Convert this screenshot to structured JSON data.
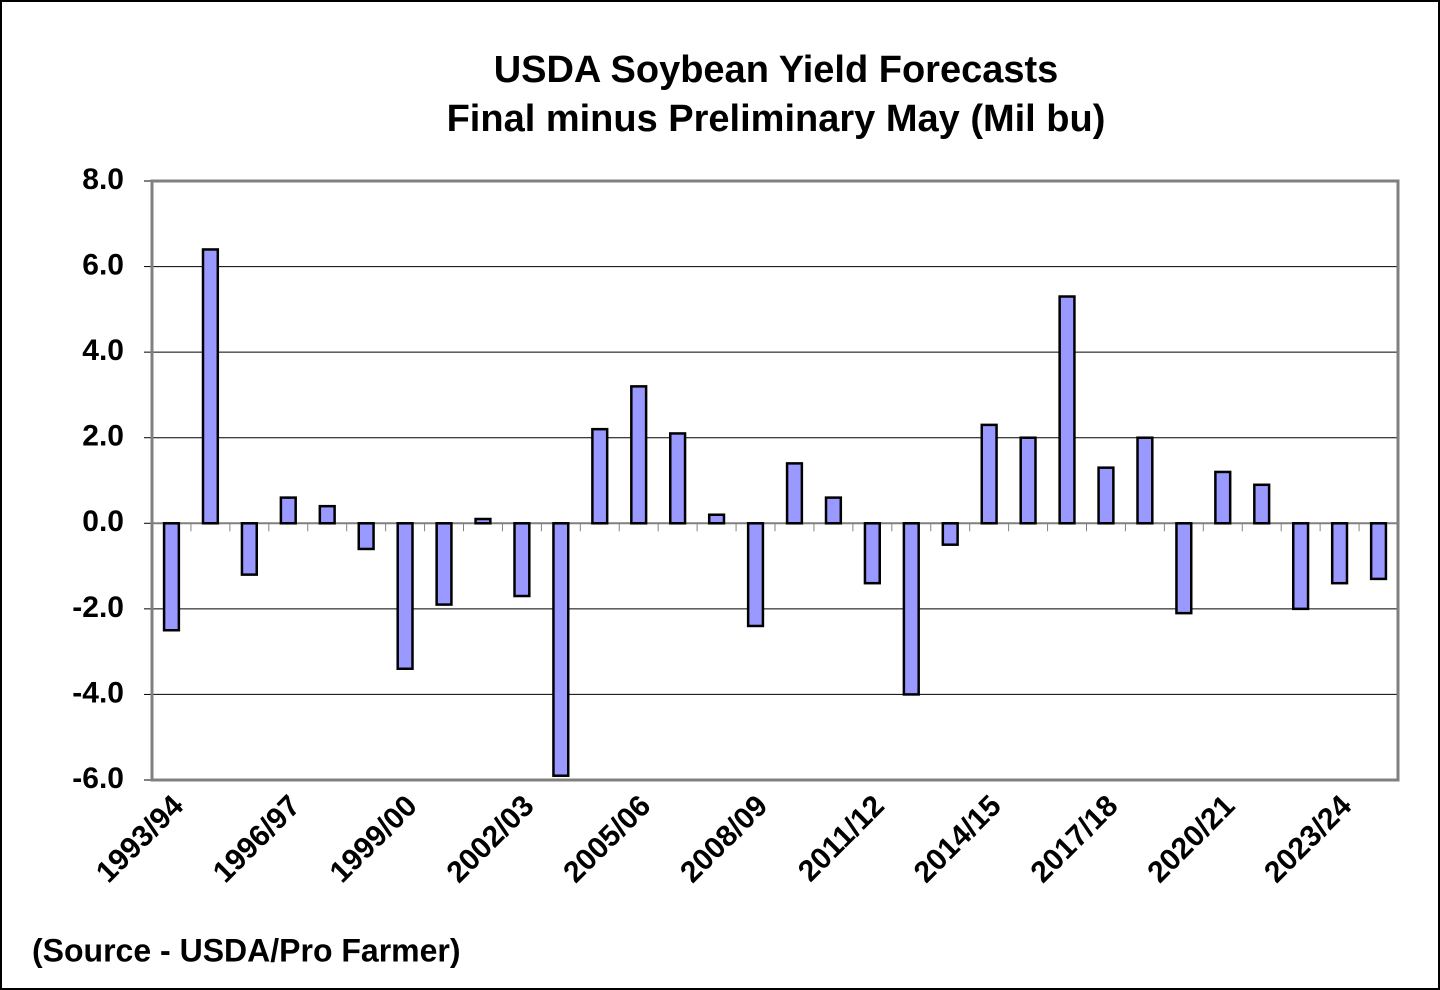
{
  "chart_data": {
    "type": "bar",
    "title": "USDA Soybean Yield Forecasts",
    "subtitle": "Final minus Preliminary May (Mil bu)",
    "source": "(Source - USDA/Pro Farmer)",
    "categories": [
      "1993/94",
      null,
      null,
      "1996/97",
      null,
      null,
      "1999/00",
      null,
      null,
      "2002/03",
      null,
      null,
      "2005/06",
      null,
      null,
      "2008/09",
      null,
      null,
      "2011/12",
      null,
      null,
      "2014/15",
      null,
      null,
      "2017/18",
      null,
      null,
      "2020/21",
      null,
      null,
      "2023/24",
      null
    ],
    "values": [
      -2.5,
      6.4,
      -1.2,
      0.6,
      0.4,
      -0.6,
      -3.4,
      -1.9,
      0.1,
      -1.7,
      -5.9,
      2.2,
      3.2,
      2.1,
      0.2,
      -2.4,
      1.4,
      0.6,
      -1.4,
      -4.0,
      -0.5,
      2.3,
      2.0,
      5.3,
      1.3,
      2.0,
      -2.1,
      1.2,
      0.9,
      -2.0,
      -1.4,
      -1.3
    ],
    "color": "#9999ff",
    "ylim": [
      -6,
      8
    ],
    "yticks": [
      {
        "value": -6,
        "label": "-6.0"
      },
      {
        "value": -4,
        "label": "-4.0"
      },
      {
        "value": -2,
        "label": "-2.0"
      },
      {
        "value": 0,
        "label": "0.0"
      },
      {
        "value": 2,
        "label": "2.0"
      },
      {
        "value": 4,
        "label": "4.0"
      },
      {
        "value": 6,
        "label": "6.0"
      },
      {
        "value": 8,
        "label": "8.0"
      }
    ],
    "grid": true
  }
}
